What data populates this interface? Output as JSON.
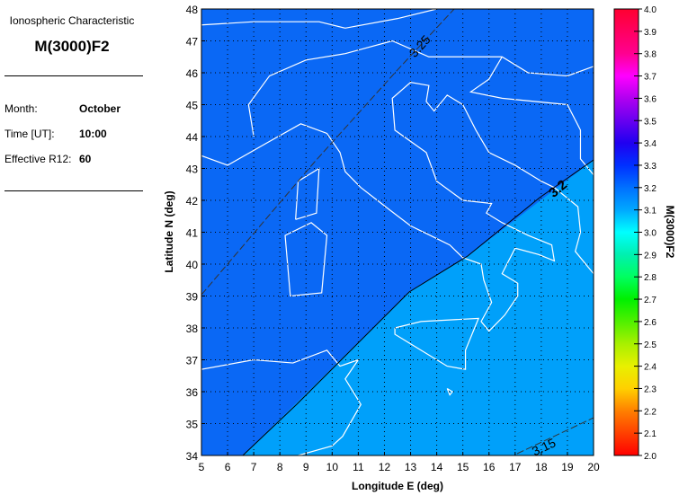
{
  "panel": {
    "subtitle": "Ionospheric Characteristic",
    "title": "M(3000)F2",
    "month_label": "Month:",
    "month": "October",
    "time_label": "Time [UT]:",
    "time": "10:00",
    "r12_label": "Effective R12:",
    "r12": "60"
  },
  "map": {
    "xlabel": "Longitude E (deg)",
    "ylabel": "Latitude N (deg)",
    "lon_range": [
      5,
      20
    ],
    "lat_range": [
      34,
      48
    ],
    "x_ticks": [
      "5",
      "6",
      "7",
      "8",
      "9",
      "10",
      "11",
      "12",
      "13",
      "14",
      "15",
      "16",
      "17",
      "18",
      "19",
      "20"
    ],
    "y_ticks": [
      "34",
      "35",
      "36",
      "37",
      "38",
      "39",
      "40",
      "41",
      "42",
      "43",
      "44",
      "45",
      "46",
      "47",
      "48"
    ],
    "region_colors": {
      "above_3.2": "#0a68f5",
      "below_3.2": "#00a0fa"
    },
    "contours": [
      {
        "level": "3.25",
        "style": "dashed"
      },
      {
        "level": "3.2",
        "style": "solid"
      },
      {
        "level": "3.15",
        "style": "dashed"
      }
    ]
  },
  "colorbar": {
    "label": "M(3000)F2",
    "range": [
      2.0,
      4.0
    ],
    "ticks": [
      "4.0",
      "3.9",
      "3.8",
      "3.7",
      "3.6",
      "3.5",
      "3.4",
      "3.3",
      "3.2",
      "3.1",
      "3.0",
      "2.9",
      "2.8",
      "2.7",
      "2.6",
      "2.5",
      "2.4",
      "2.3",
      "2.2",
      "2.1",
      "2.0"
    ]
  }
}
